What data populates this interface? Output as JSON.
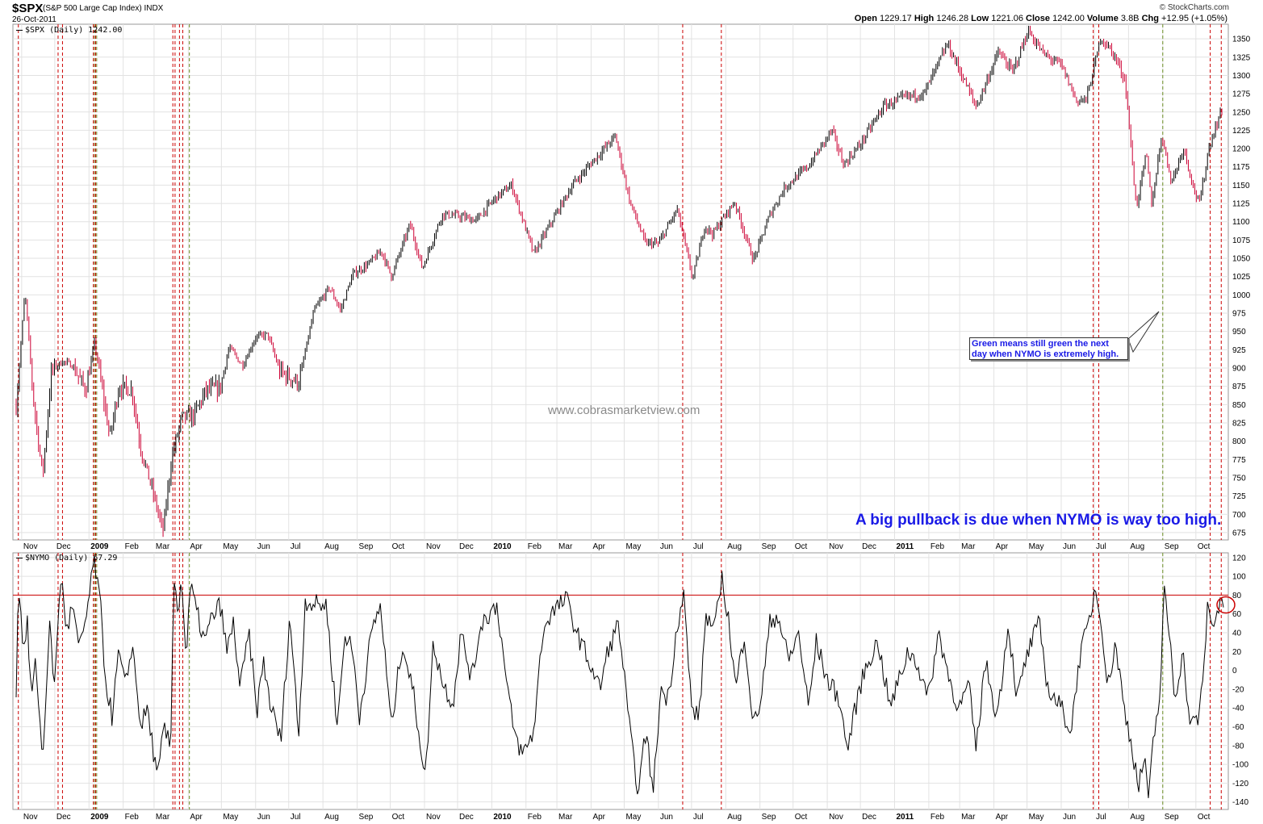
{
  "header": {
    "symbol": "$SPX",
    "symbol_name": "(S&P 500 Large Cap Index) INDX",
    "date": "26-Oct-2011",
    "watermark": "© StockCharts.com",
    "quote": {
      "open_label": "Open",
      "open": "1229.17",
      "high_label": "High",
      "high": "1246.28",
      "low_label": "Low",
      "low": "1221.06",
      "close_label": "Close",
      "close": "1242.00",
      "volume_label": "Volume",
      "volume": "3.8B",
      "chg_label": "Chg",
      "chg": "+12.95 (+1.05%)"
    }
  },
  "annotations": {
    "site_watermark": "www.cobrasmarketview.com",
    "pullback_note": "A big pullback is due when NYMO is way too high.",
    "callout_line1": "Green means still green the next",
    "callout_line2": "day when NYMO is extremely high."
  },
  "chart_data": [
    {
      "type": "ohlc",
      "legend": "$SPX (Daily) 1242.00",
      "ylim": [
        665,
        1370
      ],
      "y_ticks": [
        675,
        700,
        725,
        750,
        775,
        800,
        825,
        850,
        875,
        900,
        925,
        950,
        975,
        1000,
        1025,
        1050,
        1075,
        1100,
        1125,
        1150,
        1175,
        1200,
        1225,
        1250,
        1275,
        1300,
        1325,
        1350
      ],
      "grid": true,
      "x_ticks": [
        "Nov",
        "Dec",
        "2009",
        "Feb",
        "Mar",
        "Apr",
        "May",
        "Jun",
        "Jul",
        "Aug",
        "Sep",
        "Oct",
        "Nov",
        "Dec",
        "2010",
        "Feb",
        "Mar",
        "Apr",
        "May",
        "Jun",
        "Jul",
        "Aug",
        "Sep",
        "Oct",
        "Nov",
        "Dec",
        "2011",
        "Feb",
        "Mar",
        "Apr",
        "May",
        "Jun",
        "Jul",
        "Aug",
        "Sep",
        "Oct"
      ],
      "x_tick_bold": [
        "2009",
        "2010",
        "2011"
      ],
      "close_path": [
        [
          "2008-10-27",
          848
        ],
        [
          "2008-11-04",
          1005
        ],
        [
          "2008-11-12",
          852
        ],
        [
          "2008-11-20",
          752
        ],
        [
          "2008-11-28",
          896
        ],
        [
          "2008-12-08",
          909
        ],
        [
          "2008-12-17",
          904
        ],
        [
          "2008-12-29",
          870
        ],
        [
          "2009-01-06",
          935
        ],
        [
          "2009-01-20",
          805
        ],
        [
          "2009-01-28",
          874
        ],
        [
          "2009-02-09",
          870
        ],
        [
          "2009-02-17",
          789
        ],
        [
          "2009-02-27",
          735
        ],
        [
          "2009-03-09",
          677
        ],
        [
          "2009-03-17",
          778
        ],
        [
          "2009-03-26",
          832
        ],
        [
          "2009-04-06",
          835
        ],
        [
          "2009-04-17",
          869
        ],
        [
          "2009-04-30",
          873
        ],
        [
          "2009-05-08",
          929
        ],
        [
          "2009-05-20",
          903
        ],
        [
          "2009-06-01",
          942
        ],
        [
          "2009-06-12",
          946
        ],
        [
          "2009-06-23",
          895
        ],
        [
          "2009-07-10",
          880
        ],
        [
          "2009-07-24",
          979
        ],
        [
          "2009-08-07",
          1010
        ],
        [
          "2009-08-17",
          979
        ],
        [
          "2009-08-28",
          1028
        ],
        [
          "2009-09-11",
          1042
        ],
        [
          "2009-09-23",
          1060
        ],
        [
          "2009-10-02",
          1025
        ],
        [
          "2009-10-19",
          1097
        ],
        [
          "2009-10-30",
          1036
        ],
        [
          "2009-11-17",
          1110
        ],
        [
          "2009-12-01",
          1108
        ],
        [
          "2009-12-18",
          1102
        ],
        [
          "2010-01-04",
          1132
        ],
        [
          "2010-01-19",
          1150
        ],
        [
          "2010-02-08",
          1056
        ],
        [
          "2010-02-25",
          1102
        ],
        [
          "2010-03-15",
          1150
        ],
        [
          "2010-04-05",
          1187
        ],
        [
          "2010-04-23",
          1217
        ],
        [
          "2010-05-06",
          1128
        ],
        [
          "2010-05-20",
          1071
        ],
        [
          "2010-06-01",
          1070
        ],
        [
          "2010-06-18",
          1117
        ],
        [
          "2010-07-02",
          1022
        ],
        [
          "2010-07-13",
          1095
        ],
        [
          "2010-07-20",
          1083
        ],
        [
          "2010-08-09",
          1127
        ],
        [
          "2010-08-26",
          1047
        ],
        [
          "2010-09-10",
          1110
        ],
        [
          "2010-09-24",
          1148
        ],
        [
          "2010-10-15",
          1176
        ],
        [
          "2010-11-05",
          1225
        ],
        [
          "2010-11-16",
          1178
        ],
        [
          "2010-12-01",
          1206
        ],
        [
          "2010-12-22",
          1258
        ],
        [
          "2011-01-10",
          1270
        ],
        [
          "2011-01-28",
          1276
        ],
        [
          "2011-02-18",
          1343
        ],
        [
          "2011-03-16",
          1257
        ],
        [
          "2011-04-05",
          1332
        ],
        [
          "2011-04-18",
          1305
        ],
        [
          "2011-05-02",
          1361
        ],
        [
          "2011-05-16",
          1329
        ],
        [
          "2011-06-01",
          1314
        ],
        [
          "2011-06-15",
          1265
        ],
        [
          "2011-06-24",
          1268
        ],
        [
          "2011-07-07",
          1353
        ],
        [
          "2011-07-20",
          1325
        ],
        [
          "2011-07-29",
          1292
        ],
        [
          "2011-08-08",
          1119
        ],
        [
          "2011-08-17",
          1193
        ],
        [
          "2011-08-22",
          1123
        ],
        [
          "2011-08-31",
          1219
        ],
        [
          "2011-09-09",
          1154
        ],
        [
          "2011-09-20",
          1202
        ],
        [
          "2011-09-28",
          1151
        ],
        [
          "2011-10-04",
          1123
        ],
        [
          "2011-10-13",
          1203
        ],
        [
          "2011-10-21",
          1238
        ],
        [
          "2011-10-24",
          1254
        ],
        [
          "2011-10-26",
          1242
        ]
      ]
    },
    {
      "type": "line",
      "legend": "$NYMO (Daily) 67.29",
      "ylim": [
        -148,
        125
      ],
      "y_ticks": [
        -140,
        -120,
        -100,
        -80,
        -60,
        -40,
        -20,
        0,
        20,
        40,
        60,
        80,
        100,
        120
      ],
      "grid": true,
      "reference_line": 80,
      "reference_color": "#cc0000",
      "highlight_circle_value": 67,
      "path": [
        [
          "2008-10-27",
          -20
        ],
        [
          "2008-10-29",
          95
        ],
        [
          "2008-11-03",
          20
        ],
        [
          "2008-11-06",
          50
        ],
        [
          "2008-11-10",
          -30
        ],
        [
          "2008-11-14",
          10
        ],
        [
          "2008-11-20",
          -100
        ],
        [
          "2008-11-26",
          50
        ],
        [
          "2008-12-01",
          -20
        ],
        [
          "2008-12-05",
          80
        ],
        [
          "2008-12-08",
          90
        ],
        [
          "2008-12-12",
          40
        ],
        [
          "2008-12-17",
          70
        ],
        [
          "2008-12-23",
          20
        ],
        [
          "2008-12-30",
          60
        ],
        [
          "2009-01-06",
          118
        ],
        [
          "2009-01-12",
          60
        ],
        [
          "2009-01-16",
          -10
        ],
        [
          "2009-01-22",
          -50
        ],
        [
          "2009-01-28",
          20
        ],
        [
          "2009-02-03",
          -20
        ],
        [
          "2009-02-09",
          30
        ],
        [
          "2009-02-17",
          -60
        ],
        [
          "2009-02-23",
          -40
        ],
        [
          "2009-03-04",
          -118
        ],
        [
          "2009-03-10",
          -60
        ],
        [
          "2009-03-16",
          -85
        ],
        [
          "2009-03-19",
          105
        ],
        [
          "2009-03-23",
          60
        ],
        [
          "2009-03-26",
          100
        ],
        [
          "2009-03-30",
          10
        ],
        [
          "2009-04-03",
          90
        ],
        [
          "2009-04-09",
          60
        ],
        [
          "2009-04-16",
          30
        ],
        [
          "2009-04-22",
          55
        ],
        [
          "2009-04-30",
          70
        ],
        [
          "2009-05-06",
          20
        ],
        [
          "2009-05-12",
          50
        ],
        [
          "2009-05-18",
          -20
        ],
        [
          "2009-05-26",
          40
        ],
        [
          "2009-06-02",
          -45
        ],
        [
          "2009-06-08",
          10
        ],
        [
          "2009-06-15",
          -40
        ],
        [
          "2009-06-24",
          -75
        ],
        [
          "2009-07-02",
          60
        ],
        [
          "2009-07-10",
          -70
        ],
        [
          "2009-07-16",
          75
        ],
        [
          "2009-07-24",
          70
        ],
        [
          "2009-08-04",
          70
        ],
        [
          "2009-08-14",
          -60
        ],
        [
          "2009-08-21",
          40
        ],
        [
          "2009-08-28",
          20
        ],
        [
          "2009-09-03",
          -50
        ],
        [
          "2009-09-14",
          40
        ],
        [
          "2009-09-22",
          70
        ],
        [
          "2009-10-02",
          -60
        ],
        [
          "2009-10-12",
          30
        ],
        [
          "2009-10-22",
          -25
        ],
        [
          "2009-11-02",
          -115
        ],
        [
          "2009-11-09",
          30
        ],
        [
          "2009-11-18",
          -15
        ],
        [
          "2009-11-27",
          -35
        ],
        [
          "2009-12-04",
          40
        ],
        [
          "2009-12-14",
          -10
        ],
        [
          "2009-12-22",
          50
        ],
        [
          "2010-01-06",
          70
        ],
        [
          "2010-01-15",
          -20
        ],
        [
          "2010-01-22",
          -70
        ],
        [
          "2010-01-29",
          -90
        ],
        [
          "2010-02-08",
          -65
        ],
        [
          "2010-02-16",
          40
        ],
        [
          "2010-02-23",
          60
        ],
        [
          "2010-03-04",
          70
        ],
        [
          "2010-03-10",
          75
        ],
        [
          "2010-03-19",
          40
        ],
        [
          "2010-03-30",
          10
        ],
        [
          "2010-04-09",
          -20
        ],
        [
          "2010-04-16",
          20
        ],
        [
          "2010-04-26",
          50
        ],
        [
          "2010-05-07",
          -75
        ],
        [
          "2010-05-14",
          -130
        ],
        [
          "2010-05-21",
          -60
        ],
        [
          "2010-05-27",
          -135
        ],
        [
          "2010-06-03",
          -20
        ],
        [
          "2010-06-10",
          -30
        ],
        [
          "2010-06-18",
          50
        ],
        [
          "2010-06-24",
          80
        ],
        [
          "2010-07-01",
          -40
        ],
        [
          "2010-07-08",
          -50
        ],
        [
          "2010-07-14",
          60
        ],
        [
          "2010-07-22",
          40
        ],
        [
          "2010-07-28",
          100
        ],
        [
          "2010-08-03",
          60
        ],
        [
          "2010-08-10",
          -20
        ],
        [
          "2010-08-18",
          40
        ],
        [
          "2010-08-26",
          -60
        ],
        [
          "2010-09-02",
          -30
        ],
        [
          "2010-09-10",
          50
        ],
        [
          "2010-09-17",
          60
        ],
        [
          "2010-09-27",
          10
        ],
        [
          "2010-10-06",
          40
        ],
        [
          "2010-10-15",
          -40
        ],
        [
          "2010-10-22",
          30
        ],
        [
          "2010-11-01",
          -10
        ],
        [
          "2010-11-12",
          -30
        ],
        [
          "2010-11-19",
          -85
        ],
        [
          "2010-11-30",
          -20
        ],
        [
          "2010-12-08",
          10
        ],
        [
          "2010-12-17",
          30
        ],
        [
          "2010-12-28",
          -40
        ],
        [
          "2011-01-05",
          -10
        ],
        [
          "2011-01-13",
          20
        ],
        [
          "2011-01-21",
          10
        ],
        [
          "2011-01-31",
          -30
        ],
        [
          "2011-02-10",
          40
        ],
        [
          "2011-02-22",
          -20
        ],
        [
          "2011-03-01",
          -40
        ],
        [
          "2011-03-09",
          -15
        ],
        [
          "2011-03-16",
          -85
        ],
        [
          "2011-03-24",
          10
        ],
        [
          "2011-04-04",
          -50
        ],
        [
          "2011-04-14",
          50
        ],
        [
          "2011-04-22",
          -30
        ],
        [
          "2011-05-02",
          20
        ],
        [
          "2011-05-12",
          50
        ],
        [
          "2011-05-20",
          -20
        ],
        [
          "2011-06-01",
          -40
        ],
        [
          "2011-06-10",
          -65
        ],
        [
          "2011-06-17",
          10
        ],
        [
          "2011-06-28",
          60
        ],
        [
          "2011-07-01",
          88
        ],
        [
          "2011-07-07",
          60
        ],
        [
          "2011-07-13",
          -20
        ],
        [
          "2011-07-20",
          30
        ],
        [
          "2011-07-28",
          -40
        ],
        [
          "2011-08-04",
          -80
        ],
        [
          "2011-08-10",
          -125
        ],
        [
          "2011-08-16",
          -90
        ],
        [
          "2011-08-19",
          -145
        ],
        [
          "2011-08-23",
          -80
        ],
        [
          "2011-08-30",
          -20
        ],
        [
          "2011-09-02",
          85
        ],
        [
          "2011-09-07",
          40
        ],
        [
          "2011-09-12",
          -30
        ],
        [
          "2011-09-19",
          20
        ],
        [
          "2011-09-26",
          -60
        ],
        [
          "2011-10-03",
          -50
        ],
        [
          "2011-10-07",
          -20
        ],
        [
          "2011-10-12",
          75
        ],
        [
          "2011-10-17",
          40
        ],
        [
          "2011-10-20",
          60
        ],
        [
          "2011-10-24",
          85
        ],
        [
          "2011-10-26",
          67
        ]
      ]
    }
  ],
  "signals": {
    "red_dashed_dates": [
      "2008-10-29",
      "2008-12-04",
      "2008-12-08",
      "2009-01-05",
      "2009-01-07",
      "2009-03-18",
      "2009-03-20",
      "2009-03-24",
      "2009-03-27",
      "2010-06-23",
      "2010-07-28",
      "2011-06-30",
      "2011-07-05",
      "2011-10-14",
      "2011-10-24"
    ],
    "green_dashed_dates": [
      "2009-01-06",
      "2009-01-08",
      "2009-04-02",
      "2011-09-01"
    ],
    "red_color": "#cc0000",
    "green_color": "#6b8e23"
  }
}
